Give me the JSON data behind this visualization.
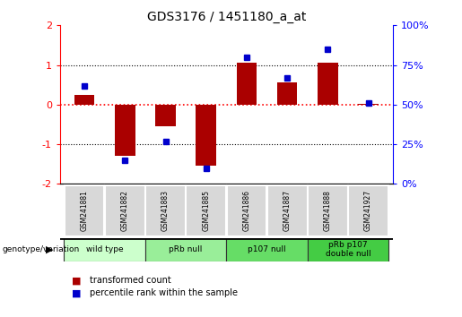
{
  "title": "GDS3176 / 1451180_a_at",
  "samples": [
    "GSM241881",
    "GSM241882",
    "GSM241883",
    "GSM241885",
    "GSM241886",
    "GSM241887",
    "GSM241888",
    "GSM241927"
  ],
  "transformed_count": [
    0.25,
    -1.3,
    -0.55,
    -1.55,
    1.05,
    0.55,
    1.05,
    0.02
  ],
  "percentile_rank": [
    62,
    15,
    27,
    10,
    80,
    67,
    85,
    51
  ],
  "groups": [
    {
      "label": "wild type",
      "samples": [
        0,
        1
      ],
      "color": "#ccffcc"
    },
    {
      "label": "pRb null",
      "samples": [
        2,
        3
      ],
      "color": "#99ee99"
    },
    {
      "label": "p107 null",
      "samples": [
        4,
        5
      ],
      "color": "#66dd66"
    },
    {
      "label": "pRb p107\ndouble null",
      "samples": [
        6,
        7
      ],
      "color": "#44cc44"
    }
  ],
  "bar_color": "#aa0000",
  "dot_color": "#0000cc",
  "ylim_left": [
    -2,
    2
  ],
  "ylim_right": [
    0,
    100
  ],
  "yticks_left": [
    -2,
    -1,
    0,
    1,
    2
  ],
  "yticks_right": [
    0,
    25,
    50,
    75,
    100
  ],
  "yticklabels_right": [
    "0%",
    "25%",
    "50%",
    "75%",
    "100%"
  ],
  "legend_items": [
    "transformed count",
    "percentile rank within the sample"
  ],
  "legend_colors": [
    "#aa0000",
    "#0000cc"
  ],
  "genotype_label": "genotype/variation",
  "background_color": "#ffffff",
  "sample_box_color": "#d8d8d8",
  "group_colors": [
    "#ccffcc",
    "#99ee99",
    "#66dd66",
    "#44cc44"
  ]
}
